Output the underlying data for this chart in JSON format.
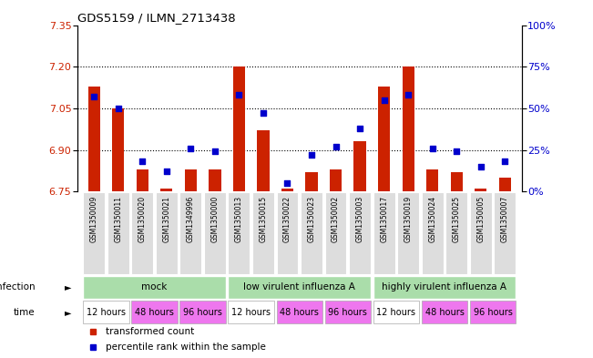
{
  "title": "GDS5159 / ILMN_2713438",
  "samples": [
    "GSM1350009",
    "GSM1350011",
    "GSM1350020",
    "GSM1350021",
    "GSM1349996",
    "GSM1350000",
    "GSM1350013",
    "GSM1350015",
    "GSM1350022",
    "GSM1350023",
    "GSM1350002",
    "GSM1350003",
    "GSM1350017",
    "GSM1350019",
    "GSM1350024",
    "GSM1350025",
    "GSM1350005",
    "GSM1350007"
  ],
  "bar_values": [
    7.13,
    7.05,
    6.83,
    6.76,
    6.83,
    6.83,
    7.2,
    6.97,
    6.76,
    6.82,
    6.83,
    6.93,
    7.13,
    7.2,
    6.83,
    6.82,
    6.76,
    6.8
  ],
  "pct_values": [
    57,
    50,
    18,
    12,
    26,
    24,
    58,
    47,
    5,
    22,
    27,
    38,
    55,
    58,
    26,
    24,
    15,
    18
  ],
  "ylim_left": [
    6.75,
    7.35
  ],
  "ylim_right": [
    0,
    100
  ],
  "yticks_left": [
    6.75,
    6.9,
    7.05,
    7.2,
    7.35
  ],
  "yticks_right": [
    0,
    25,
    50,
    75,
    100
  ],
  "ytick_labels_right": [
    "0%",
    "25%",
    "50%",
    "75%",
    "100%"
  ],
  "hlines": [
    6.9,
    7.05,
    7.2
  ],
  "bar_color": "#cc2200",
  "pct_color": "#0000cc",
  "infection_group_labels": [
    "mock",
    "low virulent influenza A",
    "highly virulent influenza A"
  ],
  "infection_group_starts": [
    0,
    6,
    12
  ],
  "infection_group_ends": [
    6,
    12,
    18
  ],
  "infection_color": "#aaddaa",
  "time_slots_label": [
    "12 hours",
    "48 hours",
    "96 hours",
    "12 hours",
    "48 hours",
    "96 hours",
    "12 hours",
    "48 hours",
    "96 hours"
  ],
  "time_slots_start": [
    0,
    2,
    4,
    6,
    8,
    10,
    12,
    14,
    16
  ],
  "time_slots_end": [
    2,
    4,
    6,
    8,
    10,
    12,
    14,
    16,
    18
  ],
  "time_color_white": "#ffffff",
  "time_color_pink": "#ee77ee",
  "sample_box_color": "#dddddd",
  "legend_labels": [
    "transformed count",
    "percentile rank within the sample"
  ],
  "legend_colors": [
    "#cc2200",
    "#0000cc"
  ]
}
